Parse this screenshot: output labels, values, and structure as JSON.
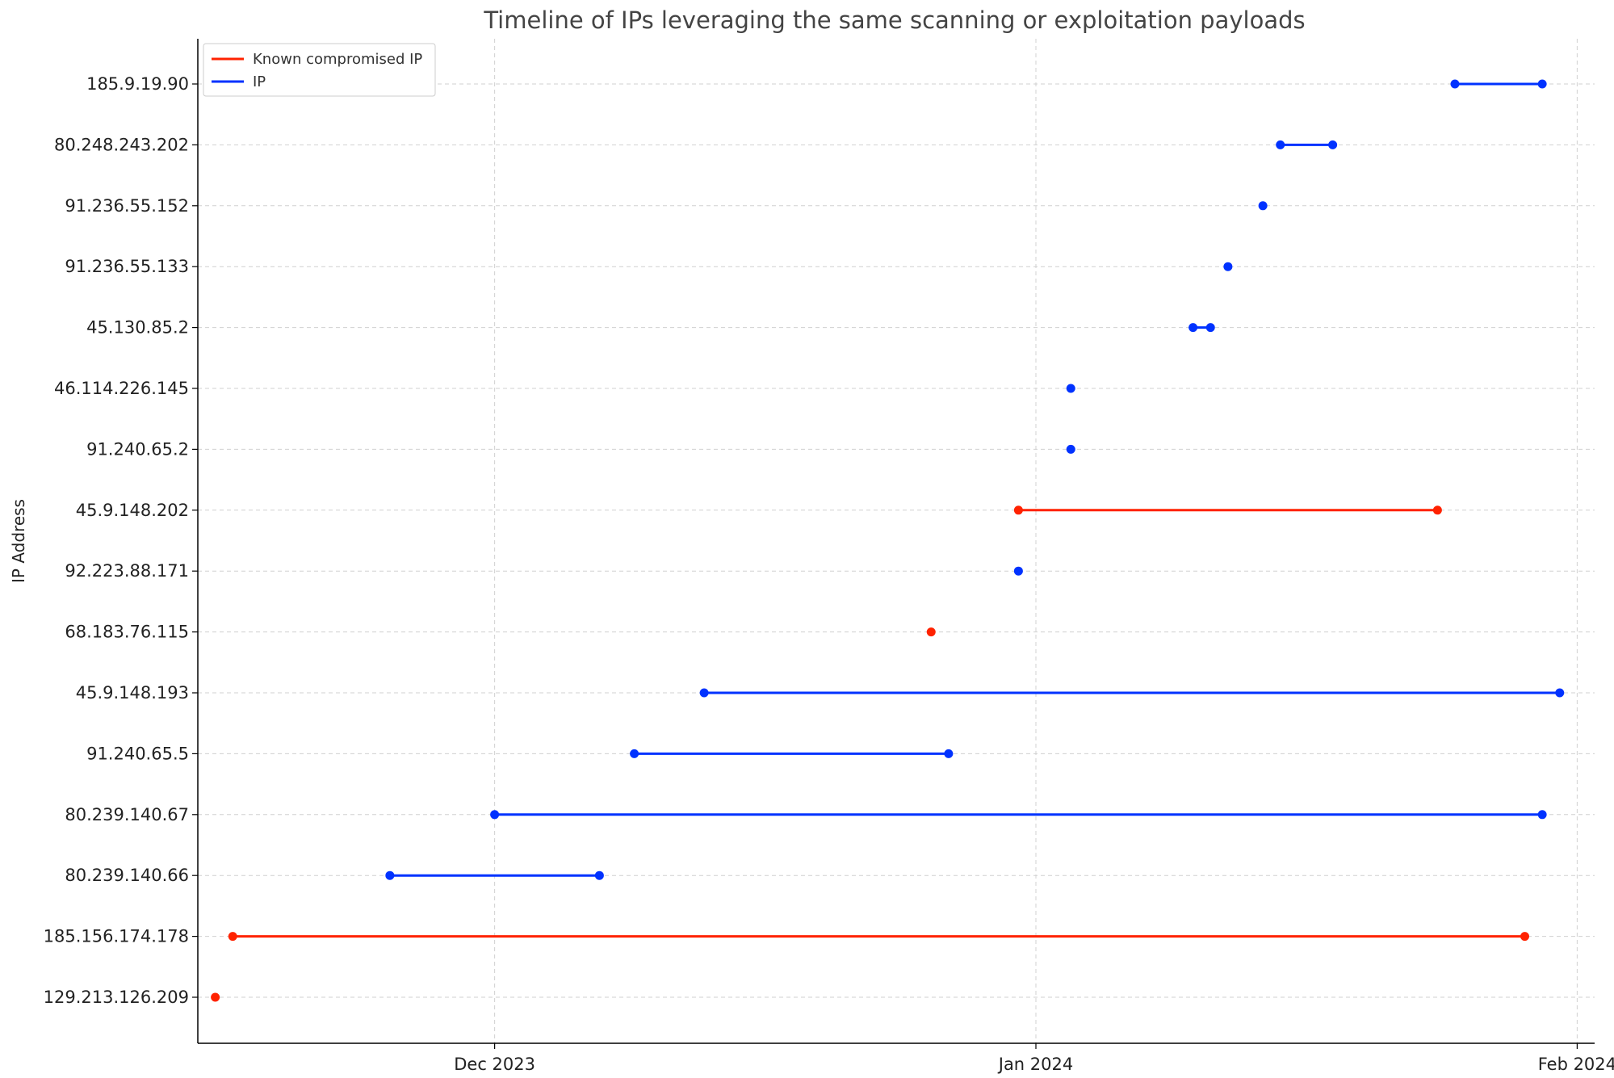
{
  "chart_data": {
    "type": "timeline",
    "title": "Timeline of IPs leveraging the same scanning or exploitation payloads",
    "xlabel": "",
    "ylabel": "IP Address",
    "x_ticks": [
      "Dec 2023",
      "Jan 2024",
      "Feb 2024"
    ],
    "x_tick_dates": [
      "2023-12-01",
      "2024-01-01",
      "2024-02-01"
    ],
    "xlim": [
      "2023-11-14",
      "2024-02-02"
    ],
    "grid": true,
    "legend_position": "top-left",
    "legend": [
      {
        "label": "Known compromised IP",
        "color": "#ff2200"
      },
      {
        "label": "IP",
        "color": "#0032ff"
      }
    ],
    "colors": {
      "compromised": "#ff2200",
      "ip": "#0032ff",
      "grid": "#d0d0d0",
      "axis": "#000000",
      "title": "#444444"
    },
    "ips": [
      {
        "ip": "129.213.126.209",
        "start": "2023-11-15",
        "end": "2023-11-15",
        "compromised": true
      },
      {
        "ip": "185.156.174.178",
        "start": "2023-11-16",
        "end": "2024-01-29",
        "compromised": true
      },
      {
        "ip": "80.239.140.66",
        "start": "2023-11-25",
        "end": "2023-12-07",
        "compromised": false
      },
      {
        "ip": "80.239.140.67",
        "start": "2023-12-01",
        "end": "2024-01-30",
        "compromised": false
      },
      {
        "ip": "91.240.65.5",
        "start": "2023-12-09",
        "end": "2023-12-27",
        "compromised": false
      },
      {
        "ip": "45.9.148.193",
        "start": "2023-12-13",
        "end": "2024-01-31",
        "compromised": false
      },
      {
        "ip": "68.183.76.115",
        "start": "2023-12-26",
        "end": "2023-12-26",
        "compromised": true
      },
      {
        "ip": "92.223.88.171",
        "start": "2023-12-31",
        "end": "2023-12-31",
        "compromised": false
      },
      {
        "ip": "45.9.148.202",
        "start": "2023-12-31",
        "end": "2024-01-24",
        "compromised": true
      },
      {
        "ip": "91.240.65.2",
        "start": "2024-01-03",
        "end": "2024-01-03",
        "compromised": false
      },
      {
        "ip": "46.114.226.145",
        "start": "2024-01-03",
        "end": "2024-01-03",
        "compromised": false
      },
      {
        "ip": "45.130.85.2",
        "start": "2024-01-10",
        "end": "2024-01-11",
        "compromised": false
      },
      {
        "ip": "91.236.55.133",
        "start": "2024-01-12",
        "end": "2024-01-12",
        "compromised": false
      },
      {
        "ip": "91.236.55.152",
        "start": "2024-01-14",
        "end": "2024-01-14",
        "compromised": false
      },
      {
        "ip": "80.248.243.202",
        "start": "2024-01-15",
        "end": "2024-01-18",
        "compromised": false
      },
      {
        "ip": "185.9.19.90",
        "start": "2024-01-25",
        "end": "2024-01-30",
        "compromised": false
      }
    ]
  }
}
